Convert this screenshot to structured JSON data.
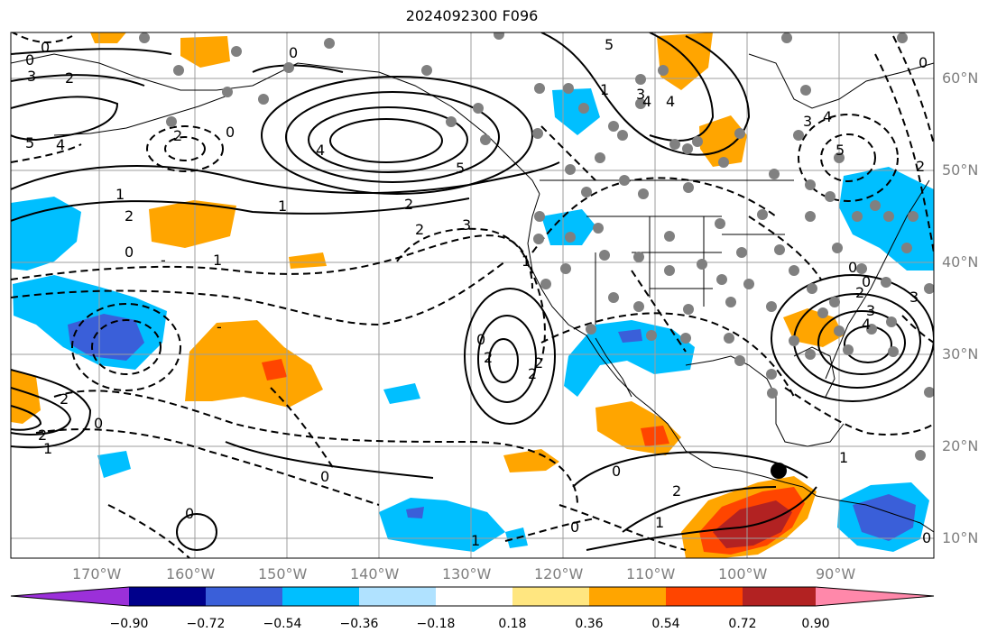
{
  "title": "2024092300 F096",
  "map": {
    "lon_labels": [
      "170°W",
      "160°W",
      "150°W",
      "140°W",
      "130°W",
      "120°W",
      "110°W",
      "100°W",
      "90°W"
    ],
    "lat_labels": [
      "60°N",
      "50°N",
      "40°N",
      "30°N",
      "20°N",
      "10°N"
    ],
    "contour_labels": [
      "0",
      "2",
      "0",
      "4",
      "3",
      "5",
      "4",
      "1",
      "2",
      "1",
      "0",
      "-",
      "2",
      "0",
      "1",
      "0",
      "4",
      "5",
      "2",
      "3",
      "2",
      "3",
      "5",
      "4",
      "3",
      "1",
      "2",
      "1",
      "-",
      "2",
      "2",
      "0",
      "1",
      "2",
      "0",
      "0",
      "2",
      "0",
      "1",
      "0",
      "0",
      "2",
      "3",
      "4",
      "3",
      "5",
      "4",
      "2",
      "0",
      "1",
      "2",
      "0",
      "0",
      "1",
      "0"
    ]
  },
  "colorbar": {
    "ticks": [
      "−0.90",
      "−0.72",
      "−0.54",
      "−0.36",
      "−0.18",
      "0.18",
      "0.36",
      "0.54",
      "0.72",
      "0.90"
    ],
    "colors": [
      "#9b30d9",
      "#00008b",
      "#3a5fd9",
      "#00bfff",
      "#b0e2ff",
      "#ffffff",
      "#ffe680",
      "#ffa500",
      "#ff4500",
      "#b22222",
      "#ff88aa"
    ]
  },
  "marker": {
    "color": "#000000"
  },
  "fill_colors": {
    "blue": "#00bfff",
    "deepblue": "#3a5fd9",
    "orange": "#ffa500",
    "red": "#ff4500",
    "darkred": "#b22222"
  }
}
